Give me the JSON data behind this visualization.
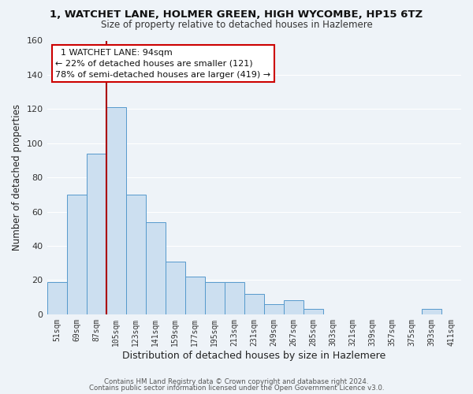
{
  "title": "1, WATCHET LANE, HOLMER GREEN, HIGH WYCOMBE, HP15 6TZ",
  "subtitle": "Size of property relative to detached houses in Hazlemere",
  "xlabel": "Distribution of detached houses by size in Hazlemere",
  "ylabel": "Number of detached properties",
  "bar_labels": [
    "51sqm",
    "69sqm",
    "87sqm",
    "105sqm",
    "123sqm",
    "141sqm",
    "159sqm",
    "177sqm",
    "195sqm",
    "213sqm",
    "231sqm",
    "249sqm",
    "267sqm",
    "285sqm",
    "303sqm",
    "321sqm",
    "339sqm",
    "357sqm",
    "375sqm",
    "393sqm",
    "411sqm"
  ],
  "bar_values": [
    19,
    70,
    94,
    121,
    70,
    54,
    31,
    22,
    19,
    19,
    12,
    6,
    8,
    3,
    0,
    0,
    0,
    0,
    0,
    3,
    0
  ],
  "bar_color": "#ccdff0",
  "bar_edge_color": "#5599cc",
  "ylim": [
    0,
    160
  ],
  "yticks": [
    0,
    20,
    40,
    60,
    80,
    100,
    120,
    140,
    160
  ],
  "property_line_color": "#aa0000",
  "annotation_title": "1 WATCHET LANE: 94sqm",
  "annotation_line1": "← 22% of detached houses are smaller (121)",
  "annotation_line2": "78% of semi-detached houses are larger (419) →",
  "annotation_box_color": "#ffffff",
  "annotation_box_edge": "#cc0000",
  "footer1": "Contains HM Land Registry data © Crown copyright and database right 2024.",
  "footer2": "Contains public sector information licensed under the Open Government Licence v3.0.",
  "background_color": "#eef3f8",
  "grid_color": "#ffffff",
  "plot_bg_color": "#eef3f8"
}
